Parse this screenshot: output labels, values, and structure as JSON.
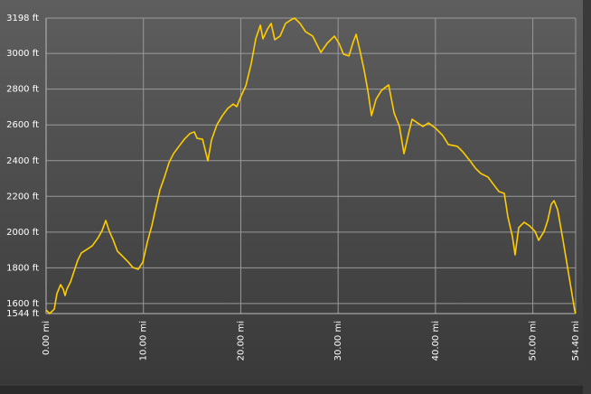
{
  "chart_data": {
    "type": "line",
    "x": [
      0,
      0.37,
      0.84,
      1.11,
      1.49,
      1.76,
      1.95,
      2.14,
      2.51,
      2.88,
      3.25,
      3.62,
      4.18,
      4.74,
      5.29,
      5.76,
      6.13,
      6.5,
      6.87,
      7.33,
      7.89,
      8.45,
      8.91,
      9.47,
      9.94,
      10.4,
      10.86,
      11.23,
      11.7,
      12.16,
      12.63,
      13.09,
      13.65,
      14.21,
      14.76,
      15.23,
      15.51,
      16.07,
      16.62,
      16.99,
      17.55,
      18.11,
      18.66,
      19.22,
      19.59,
      19.96,
      20.52,
      21.08,
      21.54,
      22.01,
      22.28,
      22.75,
      23.12,
      23.49,
      24.04,
      24.6,
      25.16,
      25.53,
      26.09,
      26.65,
      27.39,
      28.23,
      28.88,
      29.62,
      30.09,
      30.55,
      31.11,
      31.57,
      31.85,
      32.22,
      32.68,
      33.05,
      33.43,
      33.89,
      34.45,
      35.19,
      35.75,
      36.3,
      36.77,
      37.23,
      37.6,
      38.16,
      38.72,
      39.28,
      40.02,
      40.76,
      41.32,
      42.25,
      42.8,
      43.55,
      44.1,
      44.66,
      45.4,
      45.96,
      46.52,
      47.07,
      47.44,
      47.91,
      48.18,
      48.55,
      49.11,
      49.67,
      50.23,
      50.6,
      51.16,
      51.53,
      51.9,
      52.18,
      52.55,
      53.01,
      53.48,
      53.94,
      54.31,
      54.4
    ],
    "values": [
      1564,
      1544,
      1569,
      1655,
      1706,
      1681,
      1645,
      1681,
      1721,
      1782,
      1842,
      1883,
      1903,
      1923,
      1964,
      2009,
      2065,
      2004,
      1959,
      1893,
      1863,
      1832,
      1802,
      1792,
      1832,
      1944,
      2035,
      2126,
      2237,
      2308,
      2389,
      2439,
      2480,
      2520,
      2551,
      2561,
      2525,
      2520,
      2399,
      2515,
      2601,
      2652,
      2692,
      2717,
      2702,
      2753,
      2819,
      2945,
      3082,
      3158,
      3082,
      3137,
      3168,
      3077,
      3097,
      3168,
      3188,
      3198,
      3168,
      3122,
      3097,
      3006,
      3057,
      3097,
      3057,
      2996,
      2986,
      3067,
      3107,
      3021,
      2905,
      2793,
      2652,
      2743,
      2793,
      2824,
      2667,
      2591,
      2439,
      2550,
      2632,
      2611,
      2591,
      2611,
      2581,
      2540,
      2490,
      2480,
      2450,
      2399,
      2358,
      2328,
      2308,
      2267,
      2227,
      2217,
      2085,
      1974,
      1873,
      2025,
      2055,
      2035,
      2004,
      1954,
      2004,
      2065,
      2156,
      2176,
      2126,
      1984,
      1832,
      1681,
      1559,
      1544
    ],
    "color": "#ffcc00",
    "xlim": [
      0,
      54.4
    ],
    "xticks": [
      {
        "value": 0,
        "label": "0.00 mi"
      },
      {
        "value": 10,
        "label": "10.00 mi"
      },
      {
        "value": 20,
        "label": "20.00 mi"
      },
      {
        "value": 30,
        "label": "30.00 mi"
      },
      {
        "value": 40,
        "label": "40.00 mi"
      },
      {
        "value": 50,
        "label": "50.00 mi"
      },
      {
        "value": 54.4,
        "label": "54.40 mi"
      }
    ],
    "ylim": [
      1544,
      3198
    ],
    "yticks": [
      {
        "value": 1544,
        "label": "1544 ft"
      },
      {
        "value": 1600,
        "label": "1600 ft"
      },
      {
        "value": 1800,
        "label": "1800 ft"
      },
      {
        "value": 2000,
        "label": "2000 ft"
      },
      {
        "value": 2200,
        "label": "2200 ft"
      },
      {
        "value": 2400,
        "label": "2400 ft"
      },
      {
        "value": 2600,
        "label": "2600 ft"
      },
      {
        "value": 2800,
        "label": "2800 ft"
      },
      {
        "value": 3000,
        "label": "3000 ft"
      },
      {
        "value": 3198,
        "label": "3198 ft"
      }
    ],
    "grid": true
  }
}
